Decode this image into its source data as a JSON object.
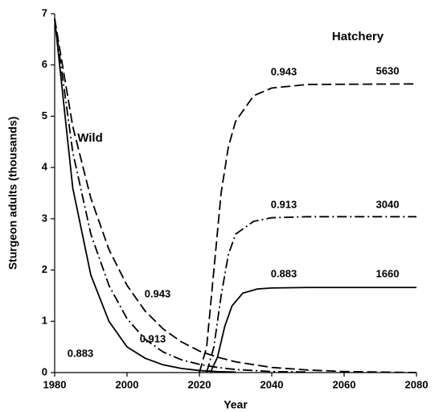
{
  "chart_data": {
    "type": "line",
    "x_label": "Year",
    "y_label": "Sturgeon adults (thousands)",
    "xlim": [
      1980,
      2080
    ],
    "xticks": [
      1980,
      2000,
      2020,
      2040,
      2060,
      2080
    ],
    "ylim": [
      0,
      7
    ],
    "yticks": [
      0,
      1,
      2,
      3,
      4,
      5,
      6,
      7
    ],
    "grid": false,
    "series": [
      {
        "color": "#000000",
        "dash": "solid",
        "x": [
          1980,
          1985,
          1990,
          1995,
          2000,
          2005,
          2010,
          2015,
          2020,
          2025,
          2030
        ],
        "values": [
          6.9,
          3.6,
          1.9,
          1.0,
          0.5,
          0.28,
          0.15,
          0.08,
          0.04,
          0.02,
          0.01
        ]
      },
      {
        "color": "#000000",
        "dash": "dashdot",
        "x": [
          1980,
          1985,
          1990,
          1995,
          2000,
          2005,
          2010,
          2015,
          2020,
          2025,
          2030,
          2040,
          2050
        ],
        "values": [
          6.9,
          4.3,
          2.7,
          1.7,
          1.05,
          0.65,
          0.4,
          0.25,
          0.16,
          0.1,
          0.06,
          0.02,
          0.01
        ]
      },
      {
        "color": "#000000",
        "dash": "dashed",
        "x": [
          1980,
          1985,
          1990,
          1995,
          2000,
          2005,
          2010,
          2015,
          2020,
          2025,
          2030,
          2040,
          2050,
          2060,
          2070,
          2080
        ],
        "values": [
          6.9,
          4.8,
          3.4,
          2.4,
          1.7,
          1.2,
          0.85,
          0.6,
          0.42,
          0.3,
          0.21,
          0.1,
          0.05,
          0.02,
          0.01,
          0
        ]
      },
      {
        "color": "#000000",
        "dash": "solid",
        "x": [
          2023,
          2025,
          2027,
          2029,
          2032,
          2036,
          2040,
          2050,
          2080
        ],
        "values": [
          0,
          0.3,
          0.9,
          1.3,
          1.55,
          1.63,
          1.65,
          1.66,
          1.66
        ]
      },
      {
        "color": "#000000",
        "dash": "dashdot",
        "x": [
          2022,
          2024,
          2026,
          2028,
          2030,
          2035,
          2040,
          2050,
          2080
        ],
        "values": [
          0,
          0.5,
          1.5,
          2.3,
          2.7,
          2.95,
          3.02,
          3.04,
          3.04
        ]
      },
      {
        "color": "#000000",
        "dash": "dashed",
        "x": [
          2020,
          2022,
          2024,
          2026,
          2028,
          2030,
          2035,
          2040,
          2050,
          2080
        ],
        "values": [
          0,
          0.5,
          2.0,
          3.5,
          4.4,
          4.9,
          5.4,
          5.55,
          5.62,
          5.63
        ]
      }
    ],
    "annotations": [
      "Wild",
      "Hatchery",
      "0.943",
      "0.913",
      "0.883",
      "0.943",
      "0.913",
      "0.883",
      "5630",
      "3040",
      "1660"
    ]
  }
}
